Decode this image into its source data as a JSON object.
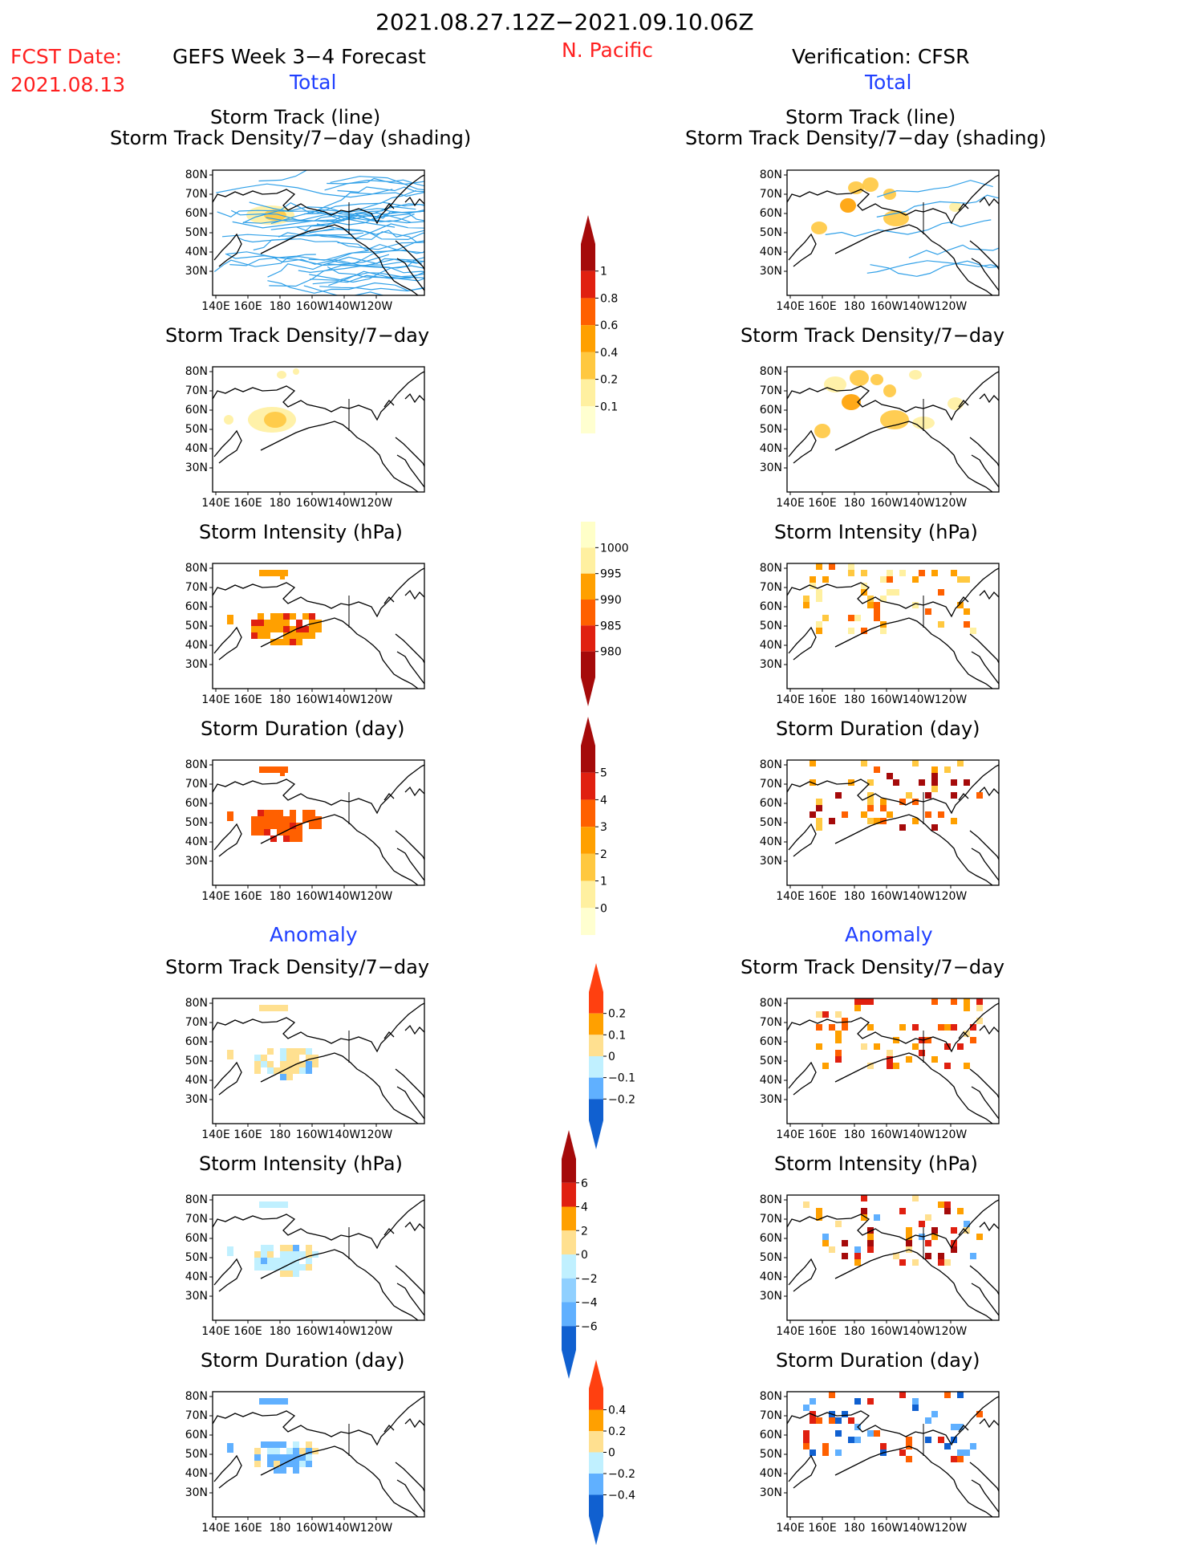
{
  "header": {
    "date_range": "2021.08.27.12Z−2021.09.10.06Z",
    "fcst_date_label": "FCST Date:",
    "fcst_date_value": "2021.08.13",
    "forecast_title": "GEFS Week 3−4 Forecast",
    "region": "N. Pacific",
    "verification_title": "Verification: CFSR",
    "total_label": "Total",
    "anomaly_label": "Anomaly"
  },
  "panel_titles": {
    "track_line": "Storm Track (line)",
    "track_shading": "Storm Track Density/7−day (shading)",
    "density": "Storm Track Density/7−day",
    "intensity": "Storm Intensity (hPa)",
    "duration": "Storm Duration (day)"
  },
  "axis": {
    "lon_labels": [
      "140E",
      "160E",
      "180",
      "160W",
      "140W",
      "120W"
    ],
    "lat_labels": [
      "80N",
      "70N",
      "60N",
      "50N",
      "40N",
      "30N"
    ]
  },
  "colorbars": {
    "density_total": {
      "labels": [
        "1",
        "0.8",
        "0.6",
        "0.4",
        "0.2",
        "0.1"
      ],
      "colors": [
        "#a50a0a",
        "#e02010",
        "#ff6000",
        "#ffa000",
        "#ffc840",
        "#fff0a0",
        "#ffffd0"
      ]
    },
    "intensity_total": {
      "labels": [
        "1000",
        "995",
        "990",
        "985",
        "980"
      ],
      "colors": [
        "#ffffc8",
        "#fff0a0",
        "#ffa000",
        "#ff6000",
        "#e02010",
        "#a50a0a"
      ]
    },
    "duration_total": {
      "labels": [
        "5",
        "4",
        "3",
        "2",
        "1",
        "0"
      ],
      "colors": [
        "#a50a0a",
        "#e02010",
        "#ff6000",
        "#ffa000",
        "#ffc840",
        "#fff0a0",
        "#ffffd0"
      ]
    },
    "density_anom": {
      "labels": [
        "0.2",
        "0.1",
        "0",
        "−0.1",
        "−0.2"
      ],
      "colors": [
        "#ff4010",
        "#ffa000",
        "#ffe090",
        "#c0f0ff",
        "#60b0ff",
        "#1060d0"
      ]
    },
    "intensity_anom": {
      "labels": [
        "6",
        "4",
        "2",
        "0",
        "−2",
        "−4",
        "−6"
      ],
      "colors": [
        "#a50a0a",
        "#e02010",
        "#ffa000",
        "#ffe090",
        "#c0f0ff",
        "#90d0ff",
        "#60b0ff",
        "#1060d0"
      ]
    },
    "duration_anom": {
      "labels": [
        "0.4",
        "0.2",
        "0",
        "−0.2",
        "−0.4"
      ],
      "colors": [
        "#ff4010",
        "#ffa000",
        "#ffe090",
        "#c0f0ff",
        "#60b0ff",
        "#1060d0"
      ]
    }
  }
}
